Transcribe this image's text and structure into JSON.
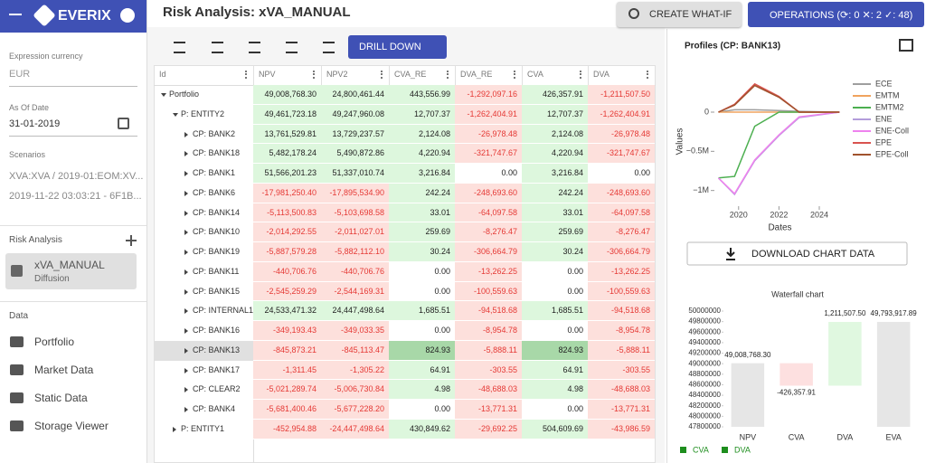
{
  "sidebar": {
    "app_name": "EVERIX",
    "fields": [
      {
        "label": "Expression currency",
        "value": "EUR"
      },
      {
        "label": "As Of Date",
        "value": "31-01-2019"
      }
    ],
    "scenarios": {
      "label": "Scenarios",
      "items": [
        "XVA:XVA / 2019-01:EOM:XV...",
        "2019-11-22 03:03:21 - 6F1B..."
      ]
    },
    "risk_analysis": {
      "label": "Risk Analysis",
      "item": "xVA_MANUAL",
      "sub": "Diffusion"
    },
    "data": {
      "label": "Data",
      "items": [
        "Portfolio",
        "Market Data",
        "Static Data",
        "Storage Viewer"
      ]
    }
  },
  "header": {
    "title": "Risk Analysis: xVA_MANUAL",
    "create_button": "CREATE WHAT-IF",
    "operations_button": "OPERATIONS (⟳: 0 ✕: 2 ✓: 48)"
  },
  "toolbar": {
    "drill_button": "DRILL DOWN"
  },
  "table": {
    "columns": [
      "Id",
      "NPV",
      "NPV2",
      "CVA_RE",
      "DVA_RE",
      "CVA",
      "DVA"
    ],
    "selected_row": 13,
    "rows": [
      {
        "id": "Portfolio",
        "level": 0,
        "cells": [
          "49,008,768.30",
          "24,800,461.44",
          "443,556.99",
          "-1,292,097.16",
          "426,357.91",
          "-1,211,507.50"
        ]
      },
      {
        "id": "P: ENTITY2",
        "level": 1,
        "cells": [
          "49,461,723.18",
          "49,247,960.08",
          "12,707.37",
          "-1,262,404.91",
          "12,707.37",
          "-1,262,404.91"
        ]
      },
      {
        "id": "CP: BANK2",
        "level": 2,
        "cells": [
          "13,761,529.81",
          "13,729,237.57",
          "2,124.08",
          "-26,978.48",
          "2,124.08",
          "-26,978.48"
        ]
      },
      {
        "id": "CP: BANK18",
        "level": 2,
        "cells": [
          "5,482,178.24",
          "5,490,872.86",
          "4,220.94",
          "-321,747.67",
          "4,220.94",
          "-321,747.67"
        ]
      },
      {
        "id": "CP: BANK1",
        "level": 2,
        "cells": [
          "51,566,201.23",
          "51,337,010.74",
          "3,216.84",
          "0.00",
          "3,216.84",
          "0.00"
        ]
      },
      {
        "id": "CP: BANK6",
        "level": 2,
        "cells": [
          "-17,981,250.40",
          "-17,895,534.90",
          "242.24",
          "-248,693.60",
          "242.24",
          "-248,693.60"
        ]
      },
      {
        "id": "CP: BANK14",
        "level": 2,
        "cells": [
          "-5,113,500.83",
          "-5,103,698.58",
          "33.01",
          "-64,097.58",
          "33.01",
          "-64,097.58"
        ]
      },
      {
        "id": "CP: BANK10",
        "level": 2,
        "cells": [
          "-2,014,292.55",
          "-2,011,027.01",
          "259.69",
          "-8,276.47",
          "259.69",
          "-8,276.47"
        ]
      },
      {
        "id": "CP: BANK19",
        "level": 2,
        "cells": [
          "-5,887,579.28",
          "-5,882,112.10",
          "30.24",
          "-306,664.79",
          "30.24",
          "-306,664.79"
        ]
      },
      {
        "id": "CP: BANK11",
        "level": 2,
        "cells": [
          "-440,706.76",
          "-440,706.76",
          "0.00",
          "-13,262.25",
          "0.00",
          "-13,262.25"
        ]
      },
      {
        "id": "CP: BANK15",
        "level": 2,
        "cells": [
          "-2,545,259.29",
          "-2,544,169.31",
          "0.00",
          "-100,559.63",
          "0.00",
          "-100,559.63"
        ]
      },
      {
        "id": "CP: INTERNAL1",
        "level": 2,
        "cells": [
          "24,533,471.32",
          "24,447,498.64",
          "1,685.51",
          "-94,518.68",
          "1,685.51",
          "-94,518.68"
        ]
      },
      {
        "id": "CP: BANK16",
        "level": 2,
        "cells": [
          "-349,193.43",
          "-349,033.35",
          "0.00",
          "-8,954.78",
          "0.00",
          "-8,954.78"
        ]
      },
      {
        "id": "CP: BANK13",
        "level": 2,
        "cells": [
          "-845,873.21",
          "-845,113.47",
          "824.93",
          "-5,888.11",
          "824.93",
          "-5,888.11"
        ]
      },
      {
        "id": "CP: BANK17",
        "level": 2,
        "cells": [
          "-1,311.45",
          "-1,305.22",
          "64.91",
          "-303.55",
          "64.91",
          "-303.55"
        ]
      },
      {
        "id": "CP: CLEAR2",
        "level": 2,
        "cells": [
          "-5,021,289.74",
          "-5,006,730.84",
          "4.98",
          "-48,688.03",
          "4.98",
          "-48,688.03"
        ]
      },
      {
        "id": "CP: BANK4",
        "level": 2,
        "cells": [
          "-5,681,400.46",
          "-5,677,228.20",
          "0.00",
          "-13,771.31",
          "0.00",
          "-13,771.31"
        ]
      },
      {
        "id": "P: ENTITY1",
        "level": 1,
        "cells": [
          "-452,954.88",
          "-24,447,498.64",
          "430,849.62",
          "-29,692.25",
          "504,609.69",
          "-43,986.59"
        ]
      }
    ]
  },
  "profiles_panel": {
    "download_button": "DOWNLOAD CHART DATA"
  },
  "chart_data": [
    {
      "type": "line",
      "title": "Profiles (CP: BANK13)",
      "x_label": "Dates",
      "y_label": "Values",
      "x": [
        2019,
        2019.8,
        2020.8,
        2022,
        2023,
        2025
      ],
      "xlim": [
        2018.8,
        2025.3
      ],
      "xticks": [
        2020,
        2022,
        2024
      ],
      "ylim": [
        -1200000,
        450000
      ],
      "yticks": [
        {
          "value": 0,
          "label": "0"
        },
        {
          "value": -500000,
          "label": "−0.5M"
        },
        {
          "value": -1000000,
          "label": "−1M"
        }
      ],
      "series": [
        {
          "name": "ECE",
          "color": "#9e9e9e",
          "values": [
            0,
            30000,
            30000,
            20000,
            10000,
            0
          ]
        },
        {
          "name": "EMTM",
          "color": "#f0a35e",
          "values": [
            0,
            0,
            0,
            0,
            0,
            0
          ]
        },
        {
          "name": "EMTM2",
          "color": "#4caf50",
          "values": [
            -840000,
            -820000,
            -180000,
            0,
            0,
            0
          ]
        },
        {
          "name": "ENE",
          "color": "#b39ddb",
          "values": [
            -840000,
            -1050000,
            -620000,
            -300000,
            -70000,
            0
          ]
        },
        {
          "name": "ENE-Coll",
          "color": "#ee82ee",
          "values": [
            -840000,
            -1040000,
            -610000,
            -290000,
            -60000,
            0
          ]
        },
        {
          "name": "EPE",
          "color": "#d9534f",
          "values": [
            0,
            100000,
            360000,
            200000,
            0,
            0
          ]
        },
        {
          "name": "EPE-Coll",
          "color": "#a0522d",
          "values": [
            0,
            90000,
            340000,
            190000,
            0,
            0
          ]
        }
      ]
    },
    {
      "type": "waterfall",
      "title": "Waterfall chart",
      "categories": [
        "NPV",
        "CVA",
        "DVA",
        "EVA"
      ],
      "values": [
        49008768.3,
        -426357.91,
        1211507.5,
        49793917.89
      ],
      "value_labels": [
        "49,008,768.30",
        "-426,357.91",
        "1,211,507.50",
        "49,793,917.89"
      ],
      "measures": [
        "absolute",
        "relative",
        "relative",
        "total"
      ],
      "colors": {
        "total": "#e6e6e6",
        "increase": "#e0f8e0",
        "decrease": "#fde0e0"
      },
      "ylim": [
        47800000,
        50000000
      ],
      "yticks": [
        47800000,
        48000000,
        48200000,
        48400000,
        48600000,
        48800000,
        49000000,
        49200000,
        49400000,
        49600000,
        49800000,
        50000000
      ],
      "legend": [
        {
          "name": "CVA",
          "color": "#1e8e1e"
        },
        {
          "name": "DVA",
          "color": "#1e8e1e"
        }
      ]
    }
  ]
}
